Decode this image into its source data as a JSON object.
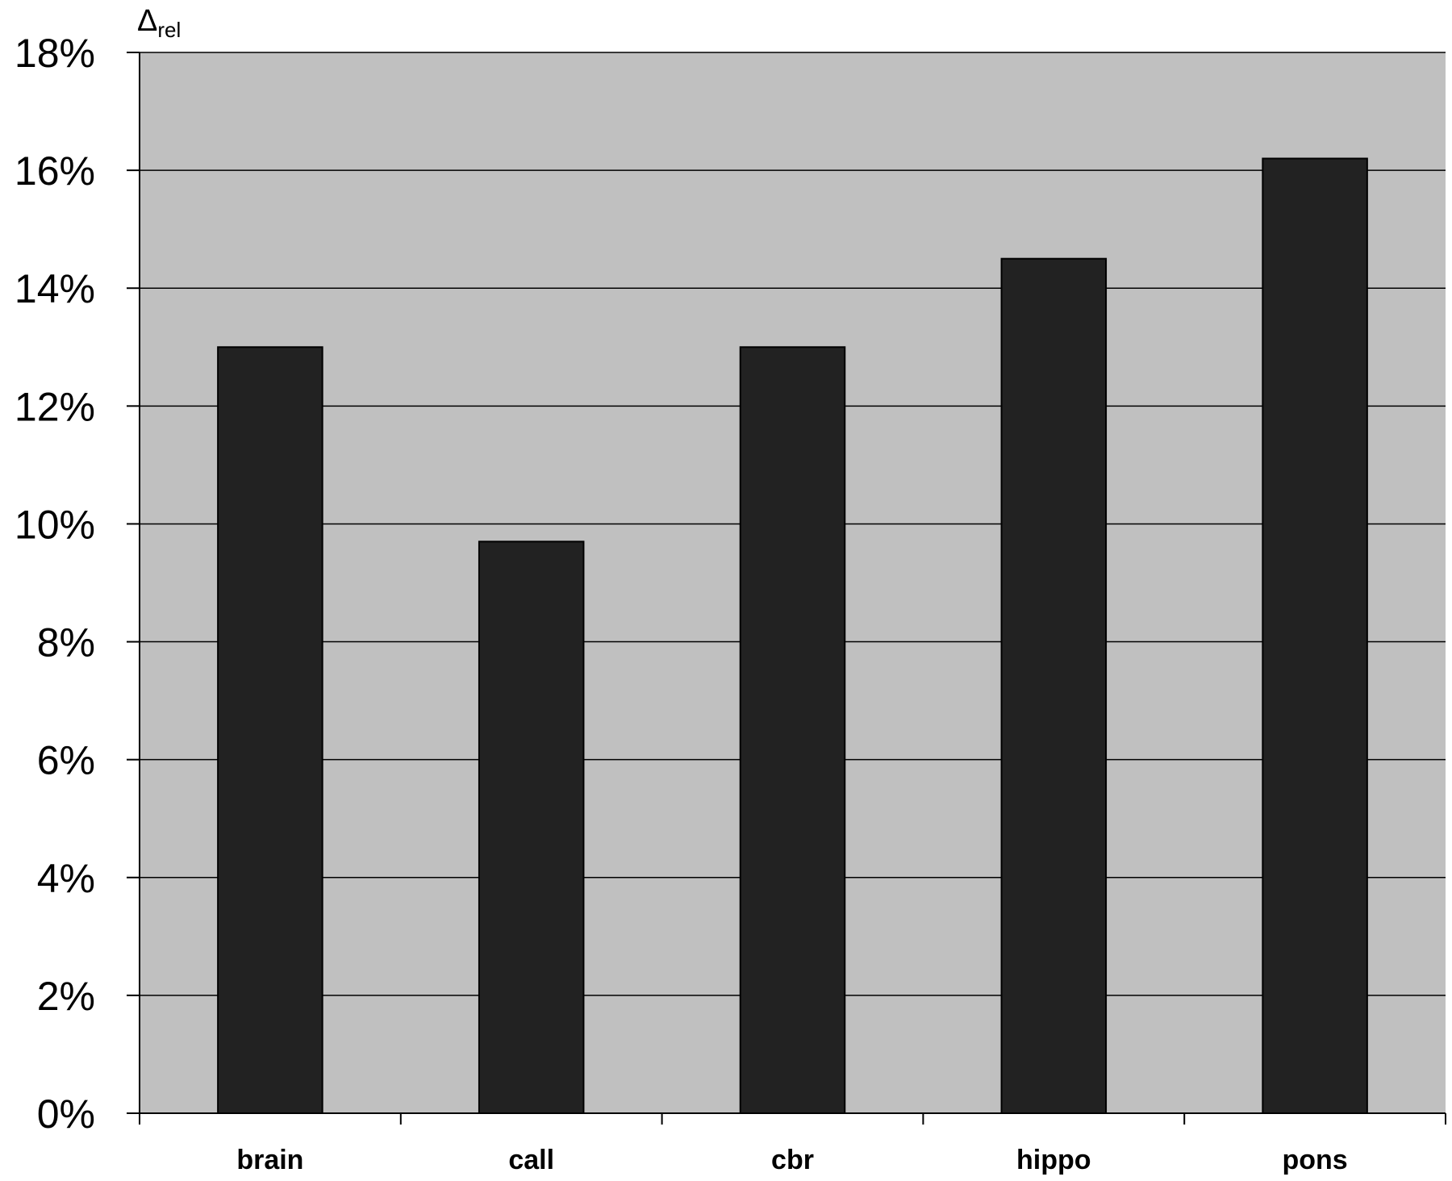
{
  "chart_data": {
    "type": "bar",
    "ylabel": {
      "symbol": "Δ",
      "subscript": "rel"
    },
    "categories": [
      "brain",
      "call",
      "cbr",
      "hippo",
      "pons"
    ],
    "values": [
      13.0,
      9.7,
      13.0,
      14.5,
      16.2
    ],
    "yticks": [
      "0%",
      "2%",
      "4%",
      "6%",
      "8%",
      "10%",
      "12%",
      "14%",
      "16%",
      "18%"
    ],
    "ylim": [
      0,
      18
    ],
    "grid": true,
    "colors": {
      "plot_background": "#c0c0c0",
      "bar": "#222222",
      "gridline": "#000000",
      "axis": "#000000"
    }
  }
}
